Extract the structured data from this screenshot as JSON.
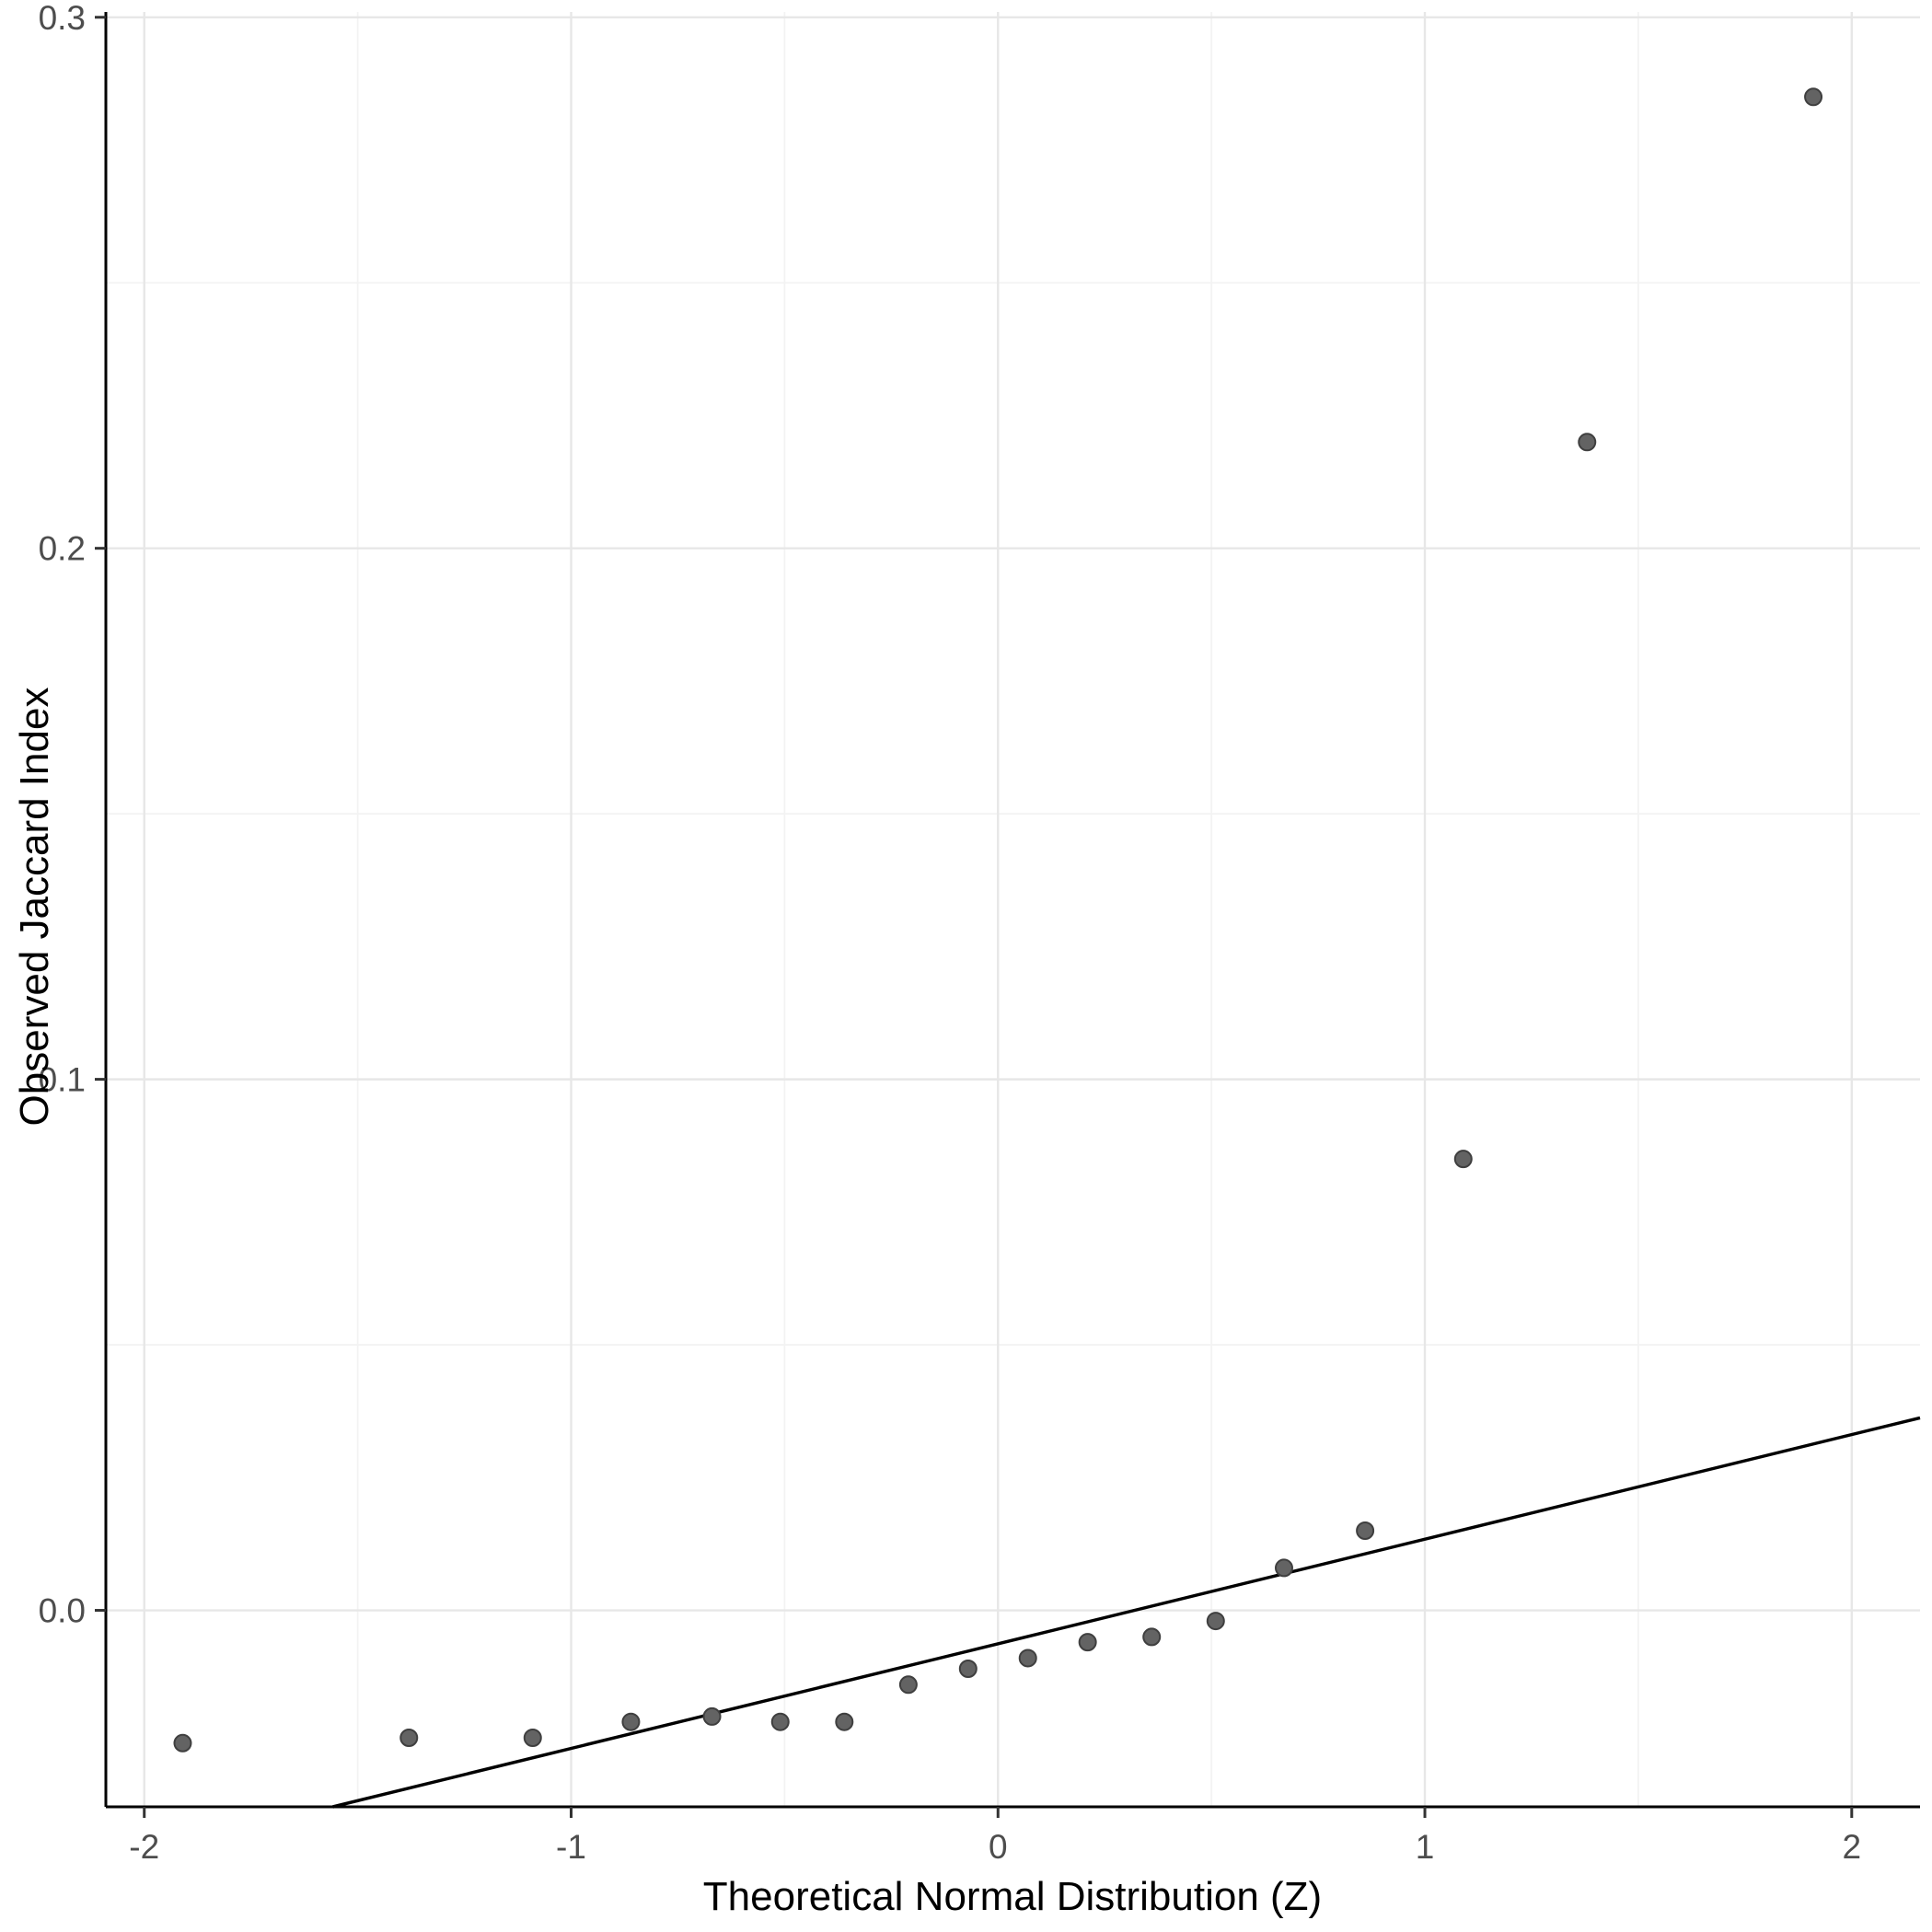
{
  "chart_data": {
    "type": "scatter",
    "title": "",
    "xlabel": "Theoretical Normal Distribution (Z)",
    "ylabel": "Observed Jaccard Index",
    "x_ticks": [
      -2,
      -1,
      0,
      1,
      2
    ],
    "x_tick_labels": [
      "-2",
      "-1",
      "0",
      "1",
      "2"
    ],
    "y_ticks": [
      0.0,
      0.1,
      0.2,
      0.3
    ],
    "y_tick_labels": [
      "0.0",
      "0.1",
      "0.2",
      "0.3"
    ],
    "x_minor": [
      -1.5,
      -0.5,
      0.5,
      1.5
    ],
    "y_minor": [
      0.05,
      0.15,
      0.25
    ],
    "xlim": [
      -2.09,
      2.16
    ],
    "ylim": [
      -0.037,
      0.301
    ],
    "grid": true,
    "legend": "none",
    "points": [
      {
        "x": -1.91,
        "y": -0.025
      },
      {
        "x": -1.38,
        "y": -0.024
      },
      {
        "x": -1.09,
        "y": -0.024
      },
      {
        "x": -0.86,
        "y": -0.021
      },
      {
        "x": -0.67,
        "y": -0.02
      },
      {
        "x": -0.51,
        "y": -0.021
      },
      {
        "x": -0.36,
        "y": -0.021
      },
      {
        "x": -0.21,
        "y": -0.014
      },
      {
        "x": -0.07,
        "y": -0.011
      },
      {
        "x": 0.07,
        "y": -0.009
      },
      {
        "x": 0.21,
        "y": -0.006
      },
      {
        "x": 0.36,
        "y": -0.005
      },
      {
        "x": 0.51,
        "y": -0.002
      },
      {
        "x": 0.67,
        "y": 0.008
      },
      {
        "x": 0.86,
        "y": 0.015
      },
      {
        "x": 1.09,
        "y": 0.085
      },
      {
        "x": 1.38,
        "y": 0.22
      },
      {
        "x": 1.91,
        "y": 0.285
      }
    ],
    "reference_line": {
      "slope": 0.0197,
      "intercept": -0.0063,
      "color": "#000000",
      "width": 3.5
    },
    "point_style": {
      "fill": "#636363",
      "stroke": "#3f3f3f",
      "radius": 9,
      "stroke_width": 2
    },
    "colors": {
      "background": "#ffffff",
      "grid_major": "#e7e7e7",
      "grid_minor": "#f3f3f3",
      "axis": "#000000",
      "tick": "#333333",
      "tick_label": "#4d4d4d"
    }
  }
}
